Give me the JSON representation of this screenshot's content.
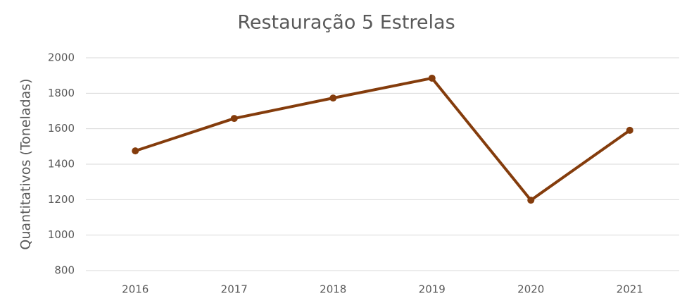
{
  "chart_data": {
    "type": "line",
    "title": "Restauração 5 Estrelas",
    "y_label": "Quantitativos (Toneladas)",
    "categories": [
      "2016",
      "2017",
      "2018",
      "2019",
      "2020",
      "2021"
    ],
    "series": [
      {
        "name": "Restauração 5 Estrelas",
        "color": "#843c0c",
        "values": [
          1475,
          1658,
          1773,
          1885,
          1197,
          1591
        ]
      }
    ],
    "ylim": [
      800,
      2000
    ],
    "yticks": [
      800,
      1000,
      1200,
      1400,
      1600,
      1800,
      2000
    ],
    "grid": true
  }
}
